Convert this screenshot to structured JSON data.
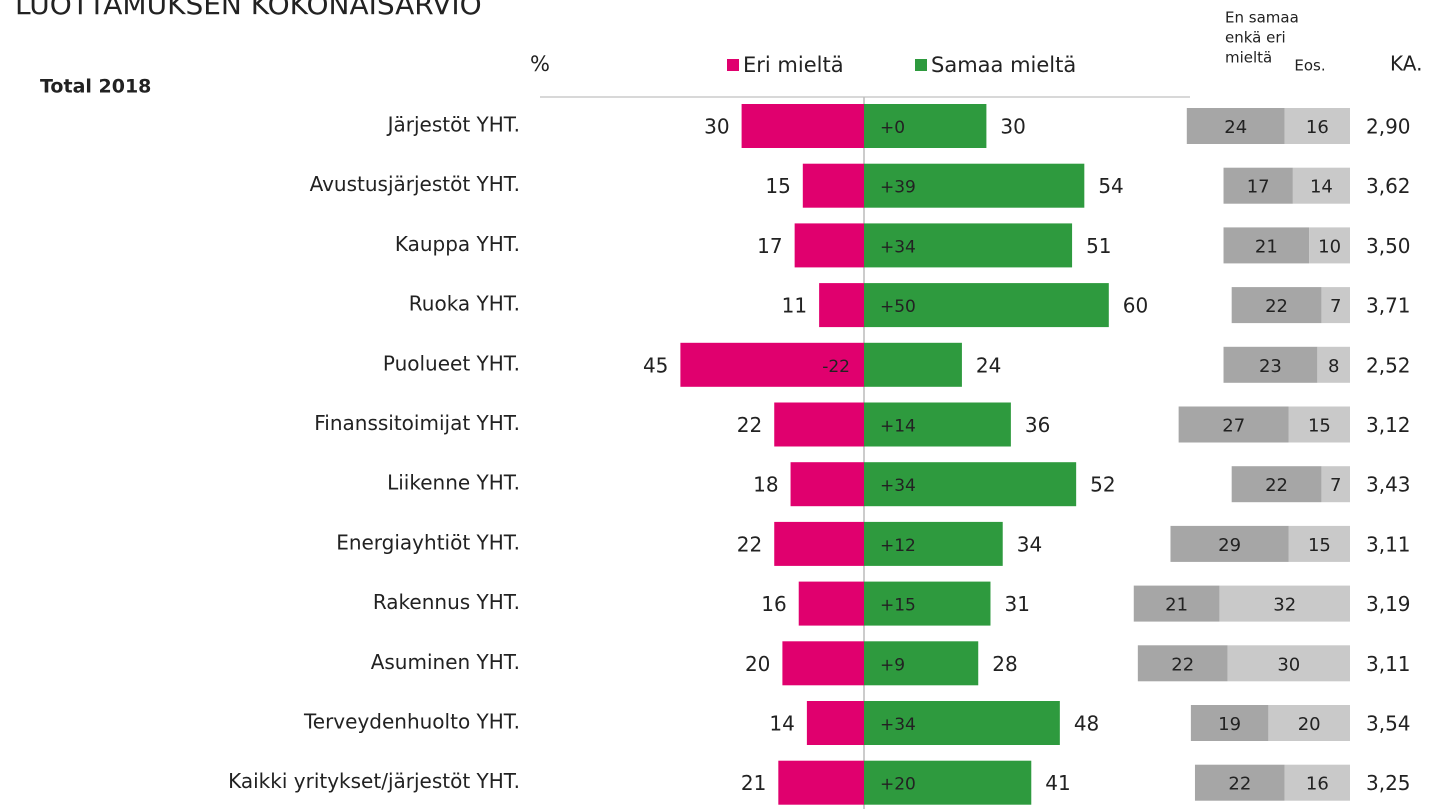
{
  "chart_data": {
    "type": "diverging_bar",
    "title": "LUOTTAMUKSEN KOKONAISARVIO",
    "subtitle": "Total 2018",
    "unit_label": "%",
    "categories": [
      "Järjestöt YHT.",
      "Avustusjärjestöt YHT.",
      "Kauppa YHT.",
      "Ruoka YHT.",
      "Puolueet YHT.",
      "Finanssitoimijat YHT.",
      "Liikenne YHT.",
      "Energiayhtiöt YHT.",
      "Rakennus YHT.",
      "Asuminen YHT.",
      "Terveydenhuolto YHT.",
      "Kaikki yritykset/järjestöt YHT."
    ],
    "series": [
      {
        "name": "Eri mieltä",
        "color": "#e0006e",
        "values": [
          30,
          15,
          17,
          11,
          45,
          22,
          18,
          22,
          16,
          20,
          14,
          21
        ]
      },
      {
        "name": "Samaa mieltä",
        "color": "#2e9a3e",
        "values": [
          30,
          54,
          51,
          60,
          24,
          36,
          52,
          34,
          31,
          28,
          48,
          41
        ]
      }
    ],
    "net": {
      "values": [
        0,
        39,
        34,
        50,
        -22,
        14,
        34,
        12,
        15,
        9,
        34,
        20
      ],
      "value_labels": [
        "+0",
        "+39",
        "+34",
        "+50",
        "-22",
        "+14",
        "+34",
        "+12",
        "+15",
        "+9",
        "+34",
        "+20"
      ],
      "color_positive": "#a8e070",
      "color_negative": "#f7a8cc"
    },
    "neutral": {
      "name": [
        "En samaa",
        "enkä eri",
        "mieltä"
      ],
      "color": "#a6a6a6",
      "values": [
        24,
        17,
        21,
        22,
        23,
        27,
        22,
        29,
        21,
        22,
        19,
        22
      ]
    },
    "eos": {
      "name": "Eos.",
      "color": "#c9c9c9",
      "values": [
        16,
        14,
        10,
        7,
        8,
        15,
        7,
        15,
        32,
        30,
        20,
        16
      ]
    },
    "mean": {
      "name": "KA.",
      "values": [
        2.9,
        3.62,
        3.5,
        3.71,
        2.52,
        3.12,
        3.43,
        3.11,
        3.19,
        3.11,
        3.54,
        3.25
      ],
      "value_labels": [
        "2,90",
        "3,62",
        "3,50",
        "3,71",
        "2,52",
        "3,12",
        "3,43",
        "3,11",
        "3,19",
        "3,11",
        "3,54",
        "3,25"
      ]
    }
  }
}
